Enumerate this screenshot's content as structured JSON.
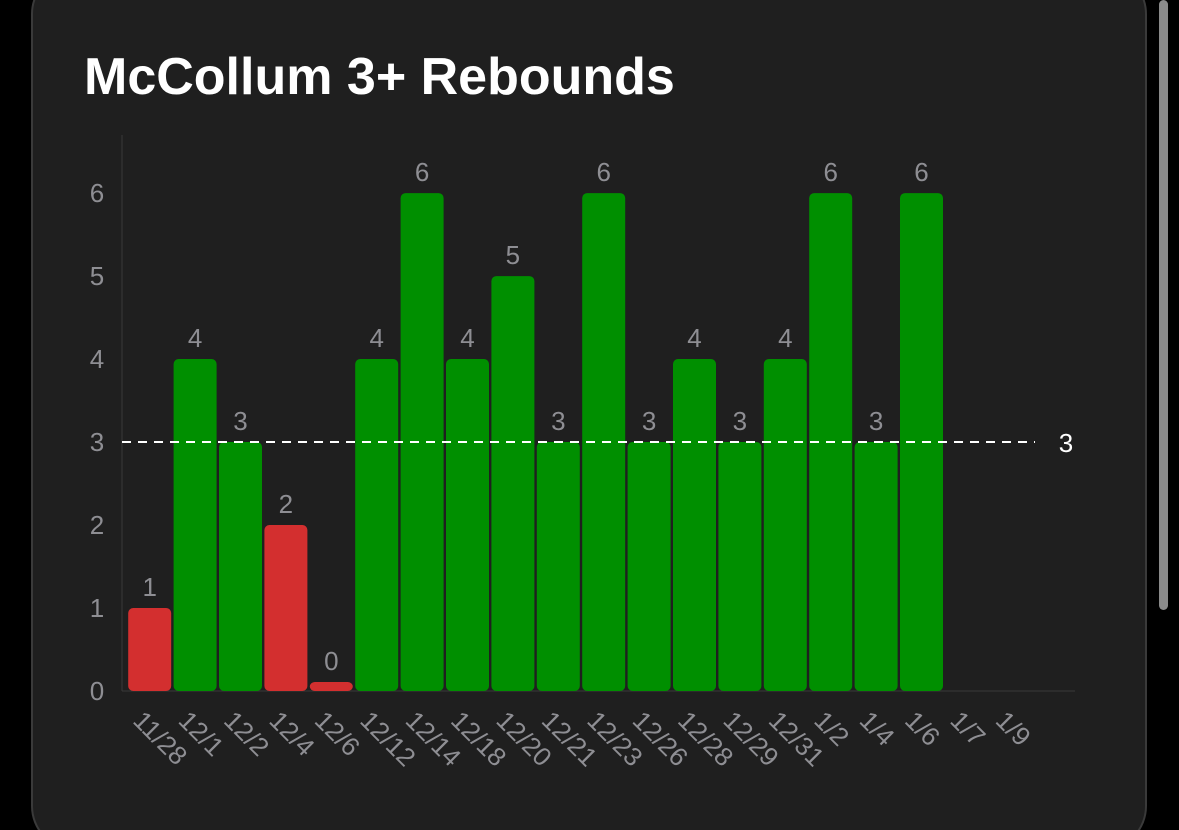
{
  "chart_data": {
    "type": "bar",
    "title": "McCollum 3+ Rebounds",
    "categories": [
      "11/28",
      "12/1",
      "12/2",
      "12/4",
      "12/6",
      "12/12",
      "12/14",
      "12/18",
      "12/20",
      "12/21",
      "12/23",
      "12/26",
      "12/28",
      "12/29",
      "12/31",
      "1/2",
      "1/4",
      "1/6",
      "1/7",
      "1/9"
    ],
    "values": [
      1,
      4,
      3,
      2,
      0,
      4,
      6,
      4,
      5,
      3,
      6,
      3,
      4,
      3,
      4,
      6,
      3,
      6,
      null,
      null
    ],
    "threshold": 3,
    "above_color": "#008f00",
    "below_color": "#d32f2f",
    "ylim": [
      0,
      6.7
    ],
    "yticks": [
      0,
      1,
      2,
      3,
      4,
      5,
      6
    ],
    "grid": false
  }
}
